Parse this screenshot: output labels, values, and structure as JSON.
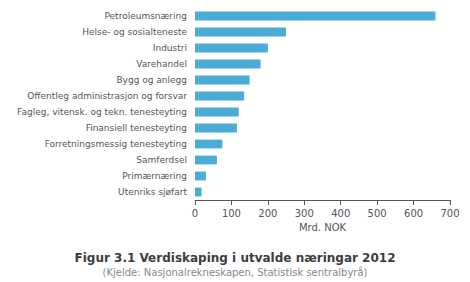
{
  "chart_data": {
    "type": "bar",
    "orientation": "horizontal",
    "title": "Figur 3.1 Verdiskaping i utvalde næringar 2012",
    "subtitle": "(Kjelde: Nasjonalrekneskapen, Statistisk sentralbyrå)",
    "categories": [
      "Utenriks sjøfart",
      "Primærnæring",
      "Samferdsel",
      "Forretningsmessig tenesteyting",
      "Finansiell tenesteyting",
      "Fagleg, vitensk. og tekn. tenesteyting",
      "Offentleg administrasjon og forsvar",
      "Bygg og anlegg",
      "Varehandel",
      "Industri",
      "Helse- og sosialteneste",
      "Petroleumsnæring"
    ],
    "values": [
      18,
      30,
      60,
      75,
      115,
      120,
      135,
      150,
      180,
      200,
      250,
      660
    ],
    "color": "#4bacd6",
    "xlabel": "Mrd. NOK",
    "xlim": [
      0,
      700
    ],
    "xticks": [
      0,
      100,
      200,
      300,
      400,
      500,
      600,
      700
    ],
    "grid": false
  }
}
